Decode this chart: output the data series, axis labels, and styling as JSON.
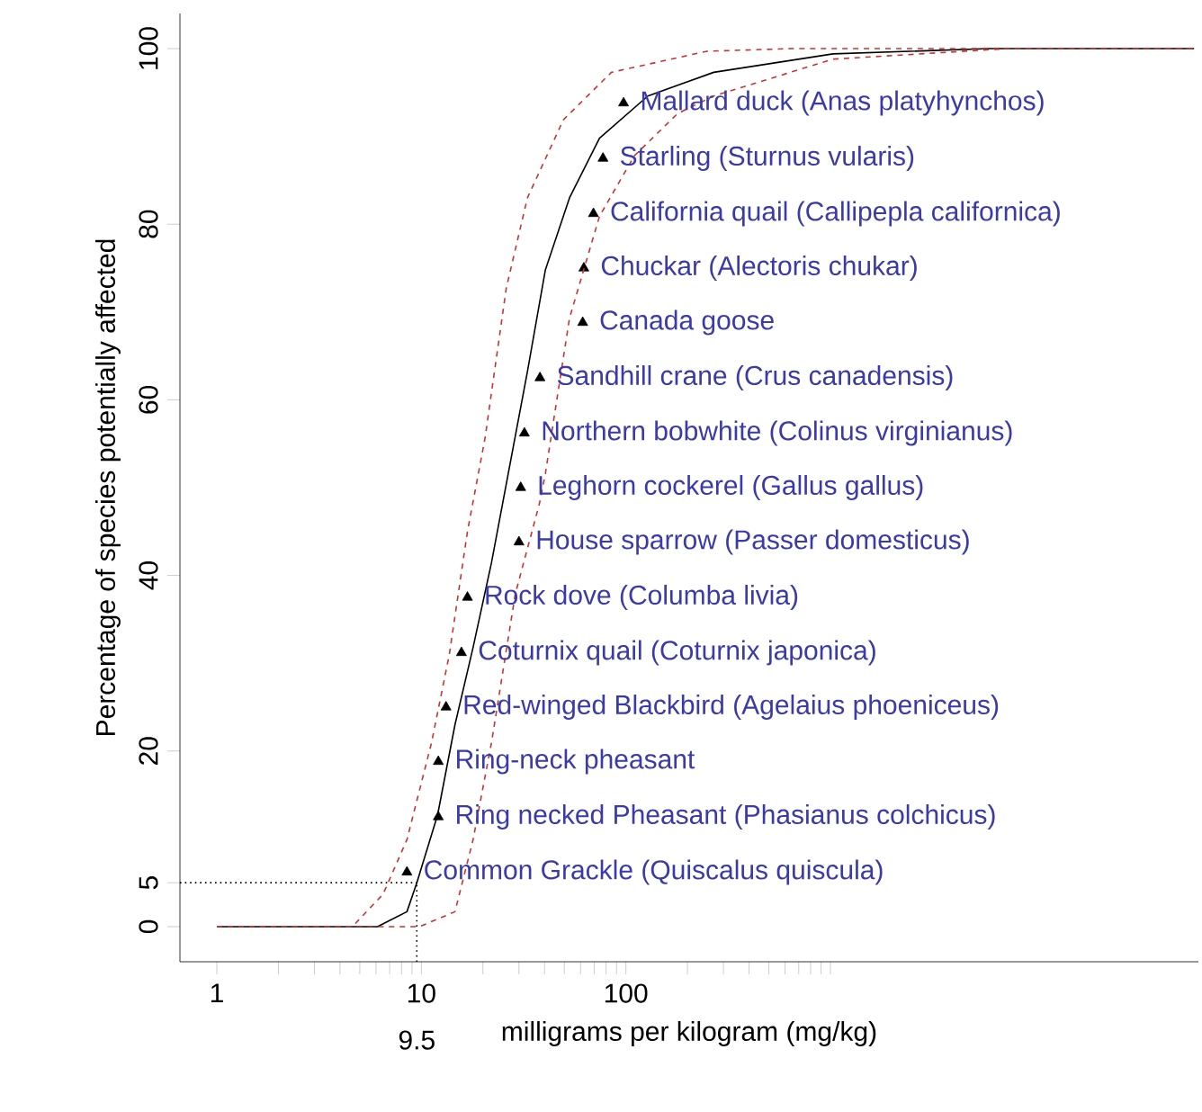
{
  "chart_data": {
    "type": "scatter",
    "xlabel": "milligrams per kilogram (mg/kg)",
    "ylabel": "Percentage of species potentially affected",
    "log": "x",
    "xlim": [
      0.66,
      63000
    ],
    "ylim": [
      -4,
      104
    ],
    "xticks": [
      1,
      {
        "value": 2,
        "label": null
      },
      {
        "value": 3,
        "label": null
      },
      {
        "value": 4,
        "label": null
      },
      {
        "value": 5,
        "label": null
      },
      {
        "value": 6,
        "label": null
      },
      {
        "value": 7,
        "label": null
      },
      {
        "value": 8,
        "label": null
      },
      {
        "value": 9,
        "label": null
      },
      10,
      {
        "value": 20,
        "label": null
      },
      {
        "value": 30,
        "label": null
      },
      {
        "value": 40,
        "label": null
      },
      {
        "value": 50,
        "label": null
      },
      {
        "value": 60,
        "label": null
      },
      {
        "value": 70,
        "label": null
      },
      {
        "value": 80,
        "label": null
      },
      {
        "value": 90,
        "label": null
      },
      100,
      {
        "value": 200,
        "label": null
      },
      {
        "value": 300,
        "label": null
      },
      {
        "value": 400,
        "label": null
      },
      {
        "value": 500,
        "label": null
      },
      {
        "value": 600,
        "label": null
      },
      {
        "value": 700,
        "label": null
      },
      {
        "value": 800,
        "label": null
      },
      {
        "value": 900,
        "label": null
      },
      {
        "value": 1000,
        "label": null
      }
    ],
    "yticks": [
      0,
      5,
      20,
      40,
      60,
      80,
      100
    ],
    "ref_lines": [
      {
        "axis": "y",
        "value": 5,
        "line_style": "dotted",
        "color": "#000000"
      },
      {
        "axis": "x",
        "value": 9.5,
        "label": "9.5",
        "line_style": "dotted",
        "color": "#000000"
      }
    ],
    "series": [
      {
        "color": "#000000",
        "marker": "triangle",
        "x": [
          8.5,
          12.1,
          12.1,
          13.2,
          15.7,
          16.8,
          30,
          30.6,
          31.9,
          38,
          61.5,
          62.3,
          69.4,
          77.3,
          97.4
        ],
        "values": [
          6.2,
          12.5,
          18.8,
          25,
          31.2,
          37.5,
          43.8,
          50,
          56.2,
          62.5,
          68.8,
          75,
          81.2,
          87.5,
          93.8
        ]
      },
      {
        "type": "line",
        "color": "#000000",
        "line_style": "solid",
        "x": [
          1,
          6.1,
          8.5,
          9.5,
          12,
          14.6,
          17.9,
          22,
          33,
          40.4,
          53,
          74.3,
          128,
          269,
          1030,
          6000,
          60000
        ],
        "values": [
          0,
          0,
          1.7,
          5,
          12.7,
          23,
          31.8,
          41.4,
          63.2,
          74.8,
          83,
          89.8,
          94.6,
          97.3,
          99.4,
          100,
          100
        ]
      },
      {
        "type": "line",
        "color": "#c83232",
        "line_style": "dashed",
        "x": [
          1,
          4.6,
          6.5,
          8.5,
          11.2,
          13.7,
          16.8,
          20.5,
          26,
          33,
          49.5,
          85,
          249,
          646,
          60000
        ],
        "values": [
          0,
          0,
          3.7,
          9.9,
          20.9,
          31,
          45,
          55.7,
          72.7,
          83,
          91.9,
          97.3,
          99.7,
          100,
          100
        ]
      },
      {
        "type": "line",
        "color": "#c83232",
        "line_style": "dashed",
        "x": [
          1,
          9.8,
          14.6,
          17.9,
          22,
          28.8,
          37.8,
          40.4,
          53,
          74.3,
          110,
          179,
          269,
          1030,
          7400,
          60000
        ],
        "values": [
          0,
          0,
          1.7,
          9.9,
          20.9,
          37.9,
          48.2,
          51.6,
          69.3,
          80.9,
          87.8,
          92.6,
          94.6,
          98.8,
          100,
          100
        ]
      }
    ],
    "annotations": [
      {
        "text": "Common Grackle (Quiscalus quiscula)",
        "x": 8.5,
        "y": 6.2
      },
      {
        "text": "Ring necked Pheasant (Phasianus colchicus)",
        "x": 12.1,
        "y": 12.5
      },
      {
        "text": "Ring-neck pheasant",
        "x": 12.1,
        "y": 18.8
      },
      {
        "text": "Red-winged Blackbird (Agelaius phoeniceus)",
        "x": 13.2,
        "y": 25
      },
      {
        "text": "Coturnix quail (Coturnix japonica)",
        "x": 15.7,
        "y": 31.2
      },
      {
        "text": "Rock dove (Columba livia)",
        "x": 16.8,
        "y": 37.5
      },
      {
        "text": "House sparrow (Passer domesticus)",
        "x": 30,
        "y": 43.8
      },
      {
        "text": "Leghorn cockerel (Gallus gallus)",
        "x": 30.6,
        "y": 50
      },
      {
        "text": "Northern bobwhite (Colinus virginianus)",
        "x": 31.9,
        "y": 56.2
      },
      {
        "text": "Sandhill crane (Crus canadensis)",
        "x": 38,
        "y": 62.5
      },
      {
        "text": "Canada goose",
        "x": 61.5,
        "y": 68.8
      },
      {
        "text": "Chuckar (Alectoris chukar)",
        "x": 62.3,
        "y": 75
      },
      {
        "text": "California quail (Callipepla californica)",
        "x": 69.4,
        "y": 81.2
      },
      {
        "text": "Starling (Sturnus vularis)",
        "x": 77.3,
        "y": 87.5
      },
      {
        "text": "Mallard duck (Anas platyhynchos)",
        "x": 97.4,
        "y": 93.8
      }
    ]
  }
}
